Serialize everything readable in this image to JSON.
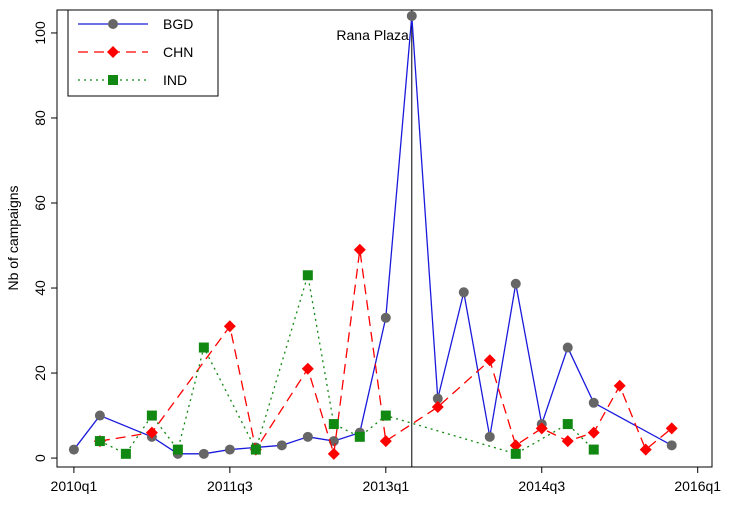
{
  "chart_data": {
    "type": "line",
    "y_label": "Nb of campaigns",
    "xlim": [
      -0.65,
      24.55
    ],
    "ylim": [
      -2.1,
      105.4
    ],
    "xticks": [
      {
        "value": 0,
        "label": "2010q1"
      },
      {
        "value": 6,
        "label": "2011q3"
      },
      {
        "value": 12,
        "label": "2013q1"
      },
      {
        "value": 18,
        "label": "2014q3"
      },
      {
        "value": 24,
        "label": "2016q1"
      }
    ],
    "yticks": [
      0,
      20,
      40,
      60,
      80,
      100
    ],
    "legend": "top-left",
    "annotations": [
      {
        "x": 13,
        "text": "Rana Plaza"
      }
    ],
    "series": [
      {
        "name": "BGD",
        "color": "#1a1adc",
        "line_style": "solid",
        "marker": "circle",
        "marker_color": "#666666",
        "x": [
          0,
          1,
          3,
          4,
          5,
          6,
          7,
          8,
          9,
          10,
          11,
          12,
          13,
          14,
          15,
          16,
          17,
          18,
          19,
          20,
          23
        ],
        "values": [
          2,
          10,
          5,
          1,
          1,
          2,
          2.5,
          3,
          5,
          4,
          6,
          33,
          104,
          14,
          39,
          5,
          41,
          8,
          26,
          13,
          3
        ]
      },
      {
        "name": "CHN",
        "color": "#ff0000",
        "line_style": "dashed",
        "marker": "diamond",
        "marker_color": "#ff0000",
        "x": [
          1,
          3,
          6,
          7,
          9,
          10,
          11,
          12,
          14,
          16,
          17,
          18,
          19,
          20,
          21,
          22,
          23
        ],
        "values": [
          4,
          6,
          31,
          2,
          21,
          1,
          49,
          4,
          12,
          23,
          3,
          7,
          4,
          6,
          17,
          2,
          7
        ]
      },
      {
        "name": "IND",
        "color": "#118811",
        "line_style": "dotted",
        "marker": "square",
        "marker_color": "#118811",
        "x": [
          1,
          2,
          3,
          4,
          5,
          7,
          9,
          10,
          11,
          12,
          17,
          19,
          20
        ],
        "values": [
          4,
          1,
          10,
          2,
          26,
          2,
          43,
          8,
          5,
          10,
          1,
          8,
          2
        ]
      }
    ]
  }
}
